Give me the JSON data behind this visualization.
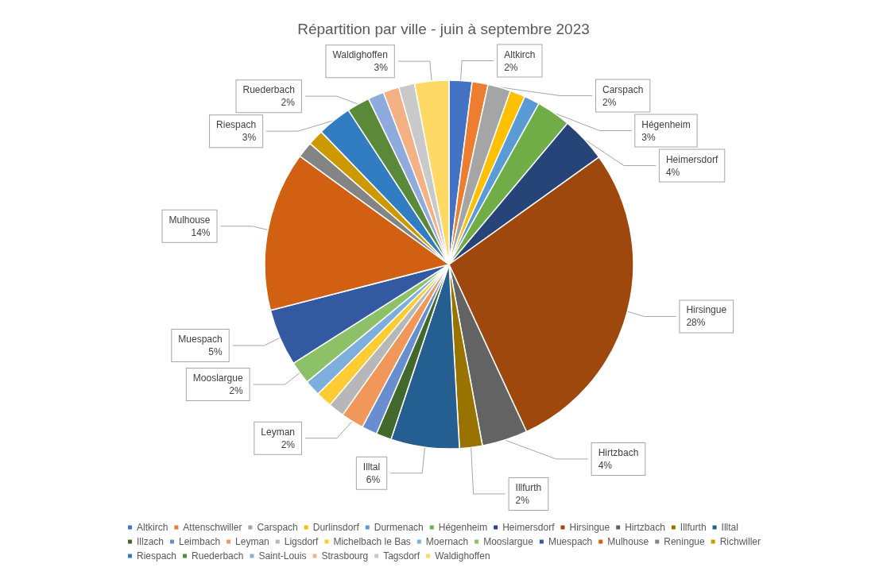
{
  "chart_data": {
    "type": "pie",
    "title": "Répartition par ville - juin à septembre 2023",
    "categories": [
      "Altkirch",
      "Attenschwiller",
      "Carspach",
      "Durlinsdorf",
      "Durmenach",
      "Hégenheim",
      "Heimersdorf",
      "Hirsingue",
      "Hirtzbach",
      "Illfurth",
      "Illtal",
      "Illzach",
      "Leimbach",
      "Leyman",
      "Ligsdorf",
      "Michelbach le Bas",
      "Moernach",
      "Mooslargue",
      "Muespach",
      "Mulhouse",
      "Reningue",
      "Richwiller",
      "Riespach",
      "Ruederbach",
      "Saint-Louis",
      "Strasbourg",
      "Tagsdorf",
      "Waldighoffen"
    ],
    "values": [
      2,
      1.4,
      2,
      1.35,
      1.35,
      3,
      4,
      28,
      4,
      2,
      6,
      1.35,
      1.35,
      2,
      1.4,
      1.4,
      1.4,
      2,
      5,
      14,
      1.4,
      1.4,
      3,
      2,
      1.4,
      1.4,
      1.4,
      3
    ],
    "value_labels": [
      "2%",
      null,
      "2%",
      null,
      null,
      "3%",
      "4%",
      "28%",
      "4%",
      "2%",
      "6%",
      null,
      null,
      "2%",
      null,
      null,
      null,
      "2%",
      "5%",
      "14%",
      null,
      null,
      "3%",
      "2%",
      null,
      null,
      null,
      "3%"
    ],
    "colors": [
      "#4472c4",
      "#ed7d31",
      "#a5a5a5",
      "#ffc000",
      "#5b9bd5",
      "#70ad47",
      "#264478",
      "#9e480e",
      "#636363",
      "#997300",
      "#255e91",
      "#43682b",
      "#698ed0",
      "#f1975a",
      "#b7b7b7",
      "#ffcd33",
      "#7cafdd",
      "#8cc168",
      "#335aa1",
      "#d26012",
      "#848484",
      "#cc9a00",
      "#327dc2",
      "#5a8a39",
      "#8faadc",
      "#f4b183",
      "#c9c9c9",
      "#ffd966"
    ],
    "legend": "bottom"
  }
}
